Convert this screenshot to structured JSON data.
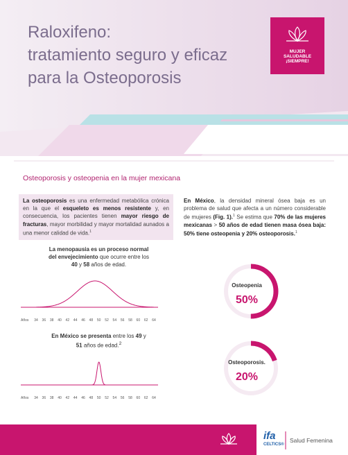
{
  "header": {
    "title_lines": [
      "Raloxifeno:",
      "tratamiento seguro y eficaz",
      "para la Osteoporosis"
    ],
    "badge": [
      "MUJER",
      "SALUDABLE",
      "¡SIEMPRE!"
    ]
  },
  "section_title": "Osteoporosis y osteopenia en la mujer mexicana",
  "intro": [
    {
      "text": "La osteoporosis",
      "style": "b"
    },
    {
      "text": " es una enfermedad metabólica crónica en la que el "
    },
    {
      "text": "esqueleto es menos resistente",
      "style": "b"
    },
    {
      "text": " y, en consecuencia, los pacientes tienen "
    },
    {
      "text": "mayor riesgo de fracturas",
      "style": "b"
    },
    {
      "text": ", mayor morbilidad y mayor mortalidad aunados a una menor calidad de vida."
    },
    {
      "text": 1,
      "style": "sup"
    }
  ],
  "mexico": [
    {
      "text": "En México",
      "style": "b"
    },
    {
      "text": ", la densidad mineral ósea baja es un problema de salud que afecta a un número considerable de mujeres "
    },
    {
      "text": "(Fig. 1).",
      "style": "b"
    },
    {
      "text": 1,
      "style": "sup"
    },
    {
      "text": " Se estima que "
    },
    {
      "text": "70% de las mujeres mexicanas",
      "style": "b"
    },
    {
      "text": " > "
    },
    {
      "text": "50 años de edad tienen masa ósea baja: 50% tiene osteopenia y 20% osteoporosis.",
      "style": "b"
    },
    {
      "text": 1,
      "style": "sup"
    }
  ],
  "charts": [
    {
      "caption": [
        {
          "text": "La menopausia es un proceso normal del envejecimiento",
          "style": "b"
        },
        {
          "text": " que ocurre entre los "
        },
        {
          "text": 40,
          "style": "b"
        },
        {
          "text": " y "
        },
        {
          "text": 58,
          "style": "b"
        },
        {
          "text": " años de edad."
        }
      ],
      "axis_label": "Años",
      "ticks": [
        34,
        36,
        38,
        40,
        42,
        44,
        46,
        48,
        50,
        52,
        54,
        56,
        58,
        60,
        62,
        64
      ]
    },
    {
      "caption": [
        {
          "text": "En México se presenta",
          "style": "b"
        },
        {
          "text": " entre los "
        },
        {
          "text": 49,
          "style": "b"
        },
        {
          "text": " y "
        },
        {
          "text": 51,
          "style": "b"
        },
        {
          "text": " años de edad."
        },
        {
          "text": 2,
          "style": "sup"
        }
      ],
      "axis_label": "Años",
      "ticks": [
        34,
        36,
        38,
        40,
        42,
        44,
        46,
        48,
        50,
        52,
        54,
        56,
        58,
        60,
        62,
        64
      ]
    }
  ],
  "donuts": [
    {
      "label": "Osteopenia",
      "value": 50,
      "value_label": "50%"
    },
    {
      "label": "Osteoporosis.",
      "value": 20,
      "value_label": "20%"
    }
  ],
  "footer": {
    "brand": "ifa",
    "brand_sub": "CELTICS®",
    "division": "Salud Femenina"
  }
}
